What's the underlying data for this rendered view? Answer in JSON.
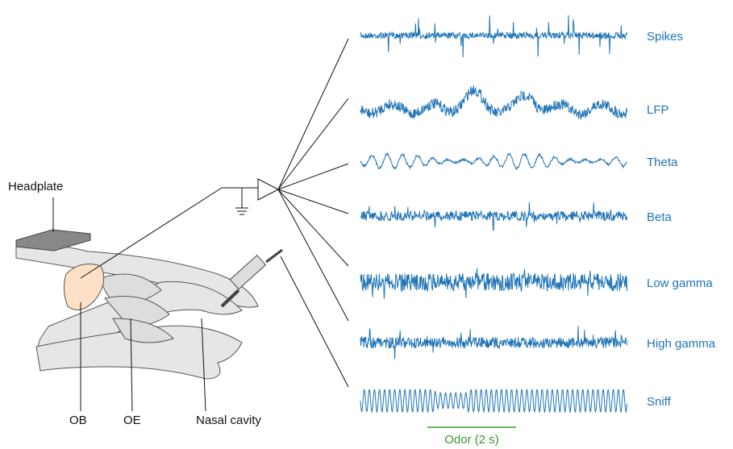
{
  "labels": {
    "headplate": "Headplate",
    "ob": "OB",
    "oe": "OE",
    "nasal_cavity": "Nasal cavity"
  },
  "traces": [
    {
      "label": "Spikes"
    },
    {
      "label": "LFP"
    },
    {
      "label": "Theta"
    },
    {
      "label": "Beta"
    },
    {
      "label": "Low gamma"
    },
    {
      "label": "High gamma"
    },
    {
      "label": "Sniff"
    }
  ],
  "odor_label": "Odor (2 s)"
}
